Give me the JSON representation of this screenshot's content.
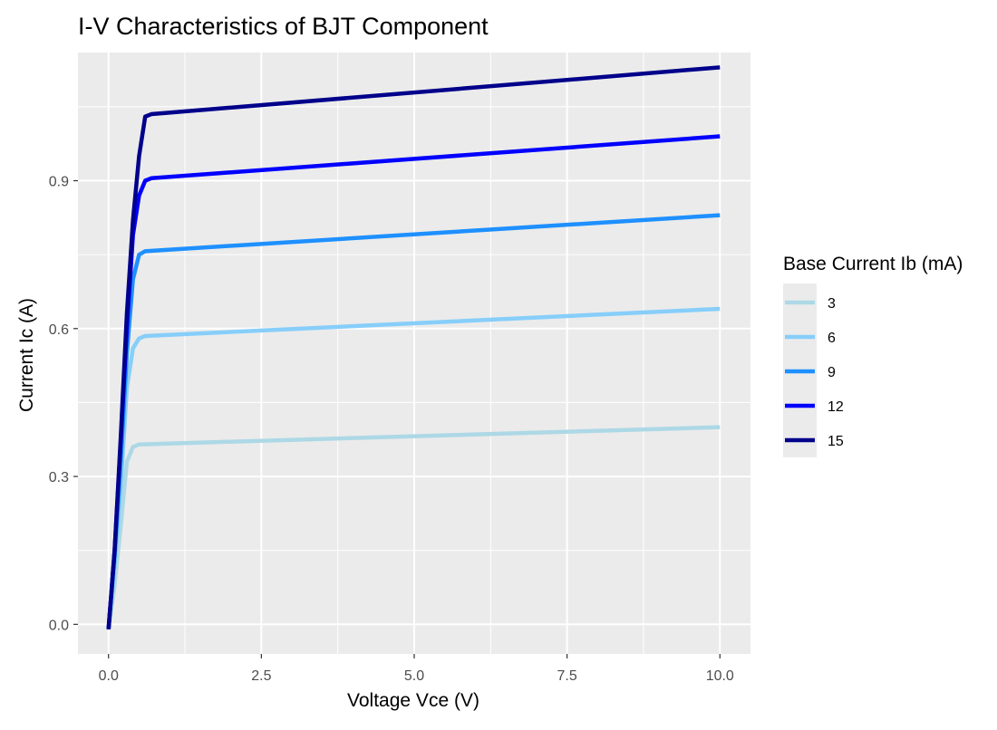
{
  "chart_data": {
    "type": "line",
    "title": "I-V Characteristics of BJT Component",
    "xlabel": "Voltage Vce (V)",
    "ylabel": "Current Ic (A)",
    "xlim": [
      -0.5,
      10.5
    ],
    "ylim": [
      -0.06,
      1.16
    ],
    "xticks": [
      0.0,
      2.5,
      5.0,
      7.5,
      10.0
    ],
    "xtick_labels": [
      "0.0",
      "2.5",
      "5.0",
      "7.5",
      "10.0"
    ],
    "yticks": [
      0.0,
      0.3,
      0.6,
      0.9
    ],
    "ytick_labels": [
      "0.0",
      "0.3",
      "0.6",
      "0.9"
    ],
    "grid": true,
    "legend": {
      "title": "Base Current Ib (mA)",
      "position": "right"
    },
    "series": [
      {
        "name": "3",
        "color": "#add8e6",
        "points": [
          [
            0,
            -0.01
          ],
          [
            0.1,
            0.08
          ],
          [
            0.2,
            0.2
          ],
          [
            0.3,
            0.33
          ],
          [
            0.4,
            0.36
          ],
          [
            0.5,
            0.365
          ],
          [
            10,
            0.4
          ]
        ]
      },
      {
        "name": "6",
        "color": "#87cefa",
        "points": [
          [
            0,
            -0.01
          ],
          [
            0.1,
            0.12
          ],
          [
            0.2,
            0.28
          ],
          [
            0.3,
            0.48
          ],
          [
            0.4,
            0.56
          ],
          [
            0.5,
            0.58
          ],
          [
            0.6,
            0.585
          ],
          [
            10,
            0.64
          ]
        ]
      },
      {
        "name": "9",
        "color": "#1e90ff",
        "points": [
          [
            0,
            -0.01
          ],
          [
            0.1,
            0.14
          ],
          [
            0.2,
            0.33
          ],
          [
            0.3,
            0.55
          ],
          [
            0.4,
            0.7
          ],
          [
            0.5,
            0.75
          ],
          [
            0.6,
            0.757
          ],
          [
            10,
            0.83
          ]
        ]
      },
      {
        "name": "12",
        "color": "#0000ff",
        "points": [
          [
            0,
            -0.01
          ],
          [
            0.1,
            0.15
          ],
          [
            0.2,
            0.37
          ],
          [
            0.3,
            0.6
          ],
          [
            0.4,
            0.79
          ],
          [
            0.5,
            0.87
          ],
          [
            0.6,
            0.9
          ],
          [
            0.7,
            0.905
          ],
          [
            10,
            0.99
          ]
        ]
      },
      {
        "name": "15",
        "color": "#00008b",
        "points": [
          [
            0,
            -0.01
          ],
          [
            0.1,
            0.15
          ],
          [
            0.2,
            0.38
          ],
          [
            0.3,
            0.63
          ],
          [
            0.4,
            0.82
          ],
          [
            0.5,
            0.95
          ],
          [
            0.6,
            1.03
          ],
          [
            0.7,
            1.035
          ],
          [
            10,
            1.13
          ]
        ]
      }
    ]
  }
}
